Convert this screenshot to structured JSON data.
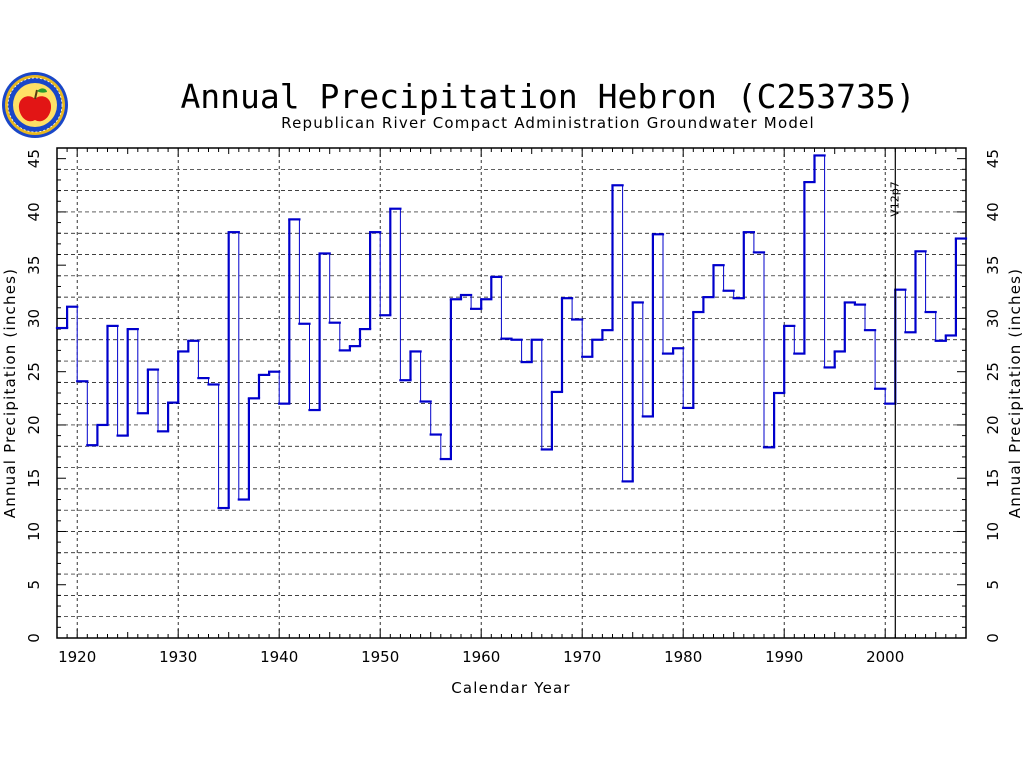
{
  "chart_data": {
    "type": "line",
    "step": true,
    "title": "Annual Precipitation Hebron (C253735)",
    "subtitle": "Republican River Compact Administration Groundwater Model",
    "xlabel": "Calendar Year",
    "ylabel": "Annual Precipitation (inches)",
    "xlim": [
      1918,
      2008
    ],
    "ylim": [
      0,
      46
    ],
    "xticks": [
      "1920",
      "1930",
      "1940",
      "1950",
      "1960",
      "1970",
      "1980",
      "1990",
      "2000"
    ],
    "yticks": [
      "0",
      "5",
      "10",
      "15",
      "20",
      "25",
      "30",
      "35",
      "40",
      "45"
    ],
    "grid": true,
    "series_color": "#0000cc",
    "annotation": {
      "text": "V12p7",
      "x": 2001
    },
    "x": [
      1918,
      1919,
      1920,
      1921,
      1922,
      1923,
      1924,
      1925,
      1926,
      1927,
      1928,
      1929,
      1930,
      1931,
      1932,
      1933,
      1934,
      1935,
      1936,
      1937,
      1938,
      1939,
      1940,
      1941,
      1942,
      1943,
      1944,
      1945,
      1946,
      1947,
      1948,
      1949,
      1950,
      1951,
      1952,
      1953,
      1954,
      1955,
      1956,
      1957,
      1958,
      1959,
      1960,
      1961,
      1962,
      1963,
      1964,
      1965,
      1966,
      1967,
      1968,
      1969,
      1970,
      1971,
      1972,
      1973,
      1974,
      1975,
      1976,
      1977,
      1978,
      1979,
      1980,
      1981,
      1982,
      1983,
      1984,
      1985,
      1986,
      1987,
      1988,
      1989,
      1990,
      1991,
      1992,
      1993,
      1994,
      1995,
      1996,
      1997,
      1998,
      1999,
      2000,
      2001,
      2002,
      2003,
      2004,
      2005,
      2006,
      2007
    ],
    "values": [
      29.1,
      31.1,
      24.1,
      18.1,
      20.0,
      29.3,
      19.0,
      29.0,
      21.1,
      25.2,
      19.4,
      22.1,
      26.9,
      27.9,
      24.4,
      23.8,
      12.2,
      38.1,
      13.0,
      22.5,
      24.7,
      25.0,
      22.0,
      39.3,
      29.5,
      21.4,
      36.1,
      29.6,
      27.0,
      27.4,
      29.0,
      38.1,
      30.3,
      40.3,
      24.2,
      26.9,
      22.2,
      19.1,
      16.8,
      31.8,
      32.2,
      30.9,
      31.8,
      33.9,
      28.1,
      28.0,
      25.9,
      28.0,
      17.7,
      23.1,
      31.9,
      29.9,
      26.4,
      28.0,
      28.9,
      42.5,
      14.7,
      31.5,
      20.8,
      37.9,
      26.7,
      27.2,
      21.6,
      30.6,
      32.0,
      35.0,
      32.6,
      31.9,
      38.1,
      36.2,
      17.9,
      23.0,
      29.3,
      26.7,
      42.8,
      45.3,
      25.4,
      26.9,
      31.5,
      31.3,
      28.9,
      23.4,
      22.0,
      32.7,
      28.7,
      36.3,
      30.6,
      27.9,
      28.4,
      37.5
    ]
  },
  "logo": {
    "name": "apple-seal-logo"
  }
}
